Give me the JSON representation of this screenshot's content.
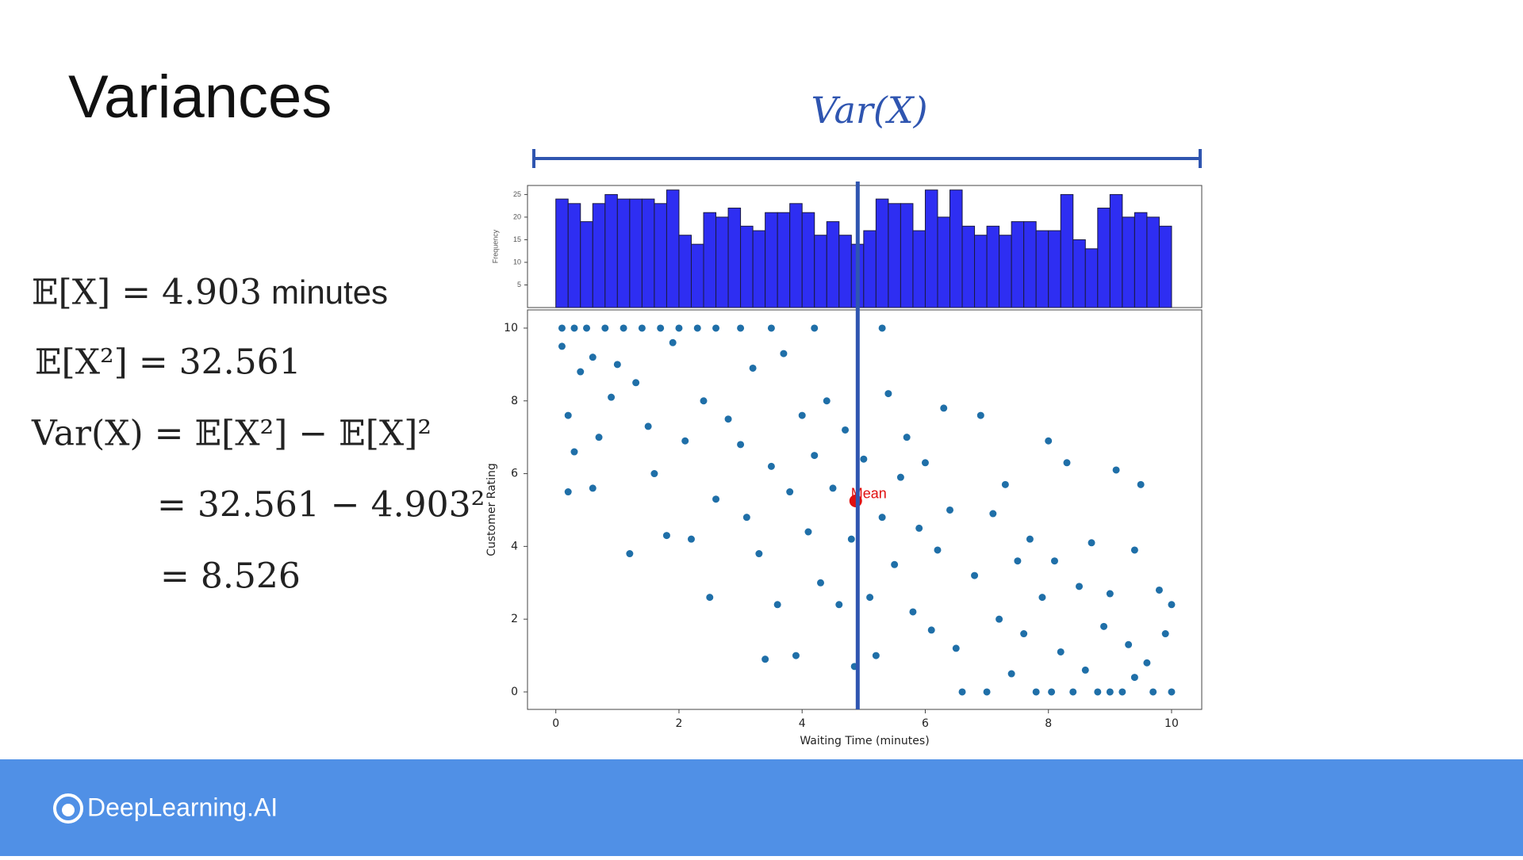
{
  "slide": {
    "title": "Variances",
    "formulas": [
      {
        "expr": "𝔼[X] = 4.903",
        "unit": "minutes"
      },
      {
        "expr": "𝔼[X²] = 32.561"
      },
      {
        "expr": "Var(X) = 𝔼[X²] − 𝔼[X]²"
      },
      {
        "expr": "= 32.561 − 4.903²"
      },
      {
        "expr": "= 8.526"
      }
    ],
    "span_label": "Var(X)",
    "logo": "DeepLearning.AI"
  },
  "chart_data": [
    {
      "type": "histogram",
      "ylabel": "Frequency",
      "color": "#2e2ef2",
      "edge": "#1a1a40",
      "bins": [
        0,
        0.2,
        0.4,
        0.6,
        0.8,
        1,
        1.2,
        1.4,
        1.6,
        1.8,
        2,
        2.2,
        2.4,
        2.6,
        2.8,
        3,
        3.2,
        3.4,
        3.6,
        3.8,
        4,
        4.2,
        4.4,
        4.6,
        4.8,
        5,
        5.2,
        5.4,
        5.6,
        5.8,
        6,
        6.2,
        6.4,
        6.6,
        6.8,
        7,
        7.2,
        7.4,
        7.6,
        7.8,
        8,
        8.2,
        8.4,
        8.6,
        8.8,
        9,
        9.2,
        9.4,
        9.6,
        9.8,
        10
      ],
      "counts": [
        24,
        23,
        19,
        23,
        25,
        24,
        24,
        24,
        23,
        26,
        16,
        14,
        21,
        20,
        22,
        18,
        17,
        21,
        21,
        23,
        21,
        16,
        19,
        16,
        14,
        17,
        24,
        23,
        23,
        17,
        26,
        20,
        26,
        18,
        16,
        18,
        16,
        19,
        19,
        17,
        17,
        25,
        15,
        13,
        22,
        25,
        20,
        21,
        20,
        18
      ],
      "xlim": [
        -0.46,
        10.49
      ],
      "ylim": [
        0,
        27
      ],
      "yticks": [
        5,
        10,
        15,
        20,
        25
      ]
    },
    {
      "type": "scatter",
      "xlabel": "Waiting Time (minutes)",
      "ylabel": "Customer Rating",
      "color": "#1f6fa8",
      "x": [
        0.1,
        0.3,
        0.5,
        0.8,
        1.1,
        1.4,
        1.7,
        2.0,
        2.3,
        2.6,
        3.0,
        3.5,
        4.2,
        5.3,
        0.1,
        0.4,
        0.2,
        0.6,
        0.9,
        0.3,
        0.6,
        0.2,
        0.7,
        1.0,
        1.2,
        1.3,
        1.5,
        1.6,
        1.8,
        1.9,
        2.1,
        2.2,
        2.4,
        2.5,
        2.6,
        2.8,
        3.0,
        3.1,
        3.2,
        3.3,
        3.4,
        3.5,
        3.6,
        3.7,
        3.8,
        3.9,
        4.0,
        4.1,
        4.2,
        4.3,
        4.4,
        4.5,
        4.6,
        4.7,
        4.8,
        4.85,
        5.0,
        5.1,
        5.2,
        5.3,
        5.4,
        5.5,
        5.6,
        5.7,
        5.8,
        5.9,
        6.0,
        6.1,
        6.2,
        6.3,
        6.4,
        6.5,
        6.6,
        6.8,
        6.9,
        7.0,
        7.1,
        7.2,
        7.3,
        7.4,
        7.5,
        7.6,
        7.7,
        7.8,
        7.9,
        8.0,
        8.05,
        8.1,
        8.2,
        8.3,
        8.4,
        8.5,
        8.6,
        8.7,
        8.8,
        8.9,
        9.0,
        9.1,
        9.2,
        9.3,
        9.4,
        9.5,
        9.6,
        9.7,
        9.8,
        9.9,
        10.0,
        10.0,
        9.0,
        9.4
      ],
      "y": [
        10,
        10,
        10,
        10,
        10,
        10,
        10,
        10,
        10,
        10,
        10,
        10,
        10,
        10,
        9.5,
        8.8,
        7.6,
        9.2,
        8.1,
        6.6,
        5.6,
        5.5,
        7.0,
        9.0,
        3.8,
        8.5,
        7.3,
        6.0,
        4.3,
        9.6,
        6.9,
        4.2,
        8.0,
        2.6,
        5.3,
        7.5,
        6.8,
        4.8,
        8.9,
        3.8,
        0.9,
        6.2,
        2.4,
        9.3,
        5.5,
        1.0,
        7.6,
        4.4,
        6.5,
        3.0,
        8.0,
        5.6,
        2.4,
        7.2,
        4.2,
        0.7,
        6.4,
        2.6,
        1.0,
        4.8,
        8.2,
        3.5,
        5.9,
        7.0,
        2.2,
        4.5,
        6.3,
        1.7,
        3.9,
        7.8,
        5.0,
        1.2,
        0,
        3.2,
        7.6,
        0,
        4.9,
        2.0,
        5.7,
        0.5,
        3.6,
        1.6,
        4.2,
        0,
        2.6,
        6.9,
        0,
        3.6,
        1.1,
        6.3,
        0,
        2.9,
        0.6,
        4.1,
        0,
        1.8,
        2.7,
        6.1,
        0,
        1.3,
        3.9,
        5.7,
        0.8,
        0,
        2.8,
        1.6,
        2.4,
        0,
        0,
        0.4
      ],
      "mean": {
        "x": 4.87,
        "y": 5.25,
        "label": "Mean",
        "color": "#e01010"
      },
      "vline": 4.903,
      "vline_color": "#2f55b0",
      "xlim": [
        -0.46,
        10.49
      ],
      "ylim": [
        -0.48,
        10.5
      ],
      "xticks": [
        0,
        2,
        4,
        6,
        8,
        10
      ],
      "yticks": [
        0,
        2,
        4,
        6,
        8,
        10
      ]
    }
  ]
}
